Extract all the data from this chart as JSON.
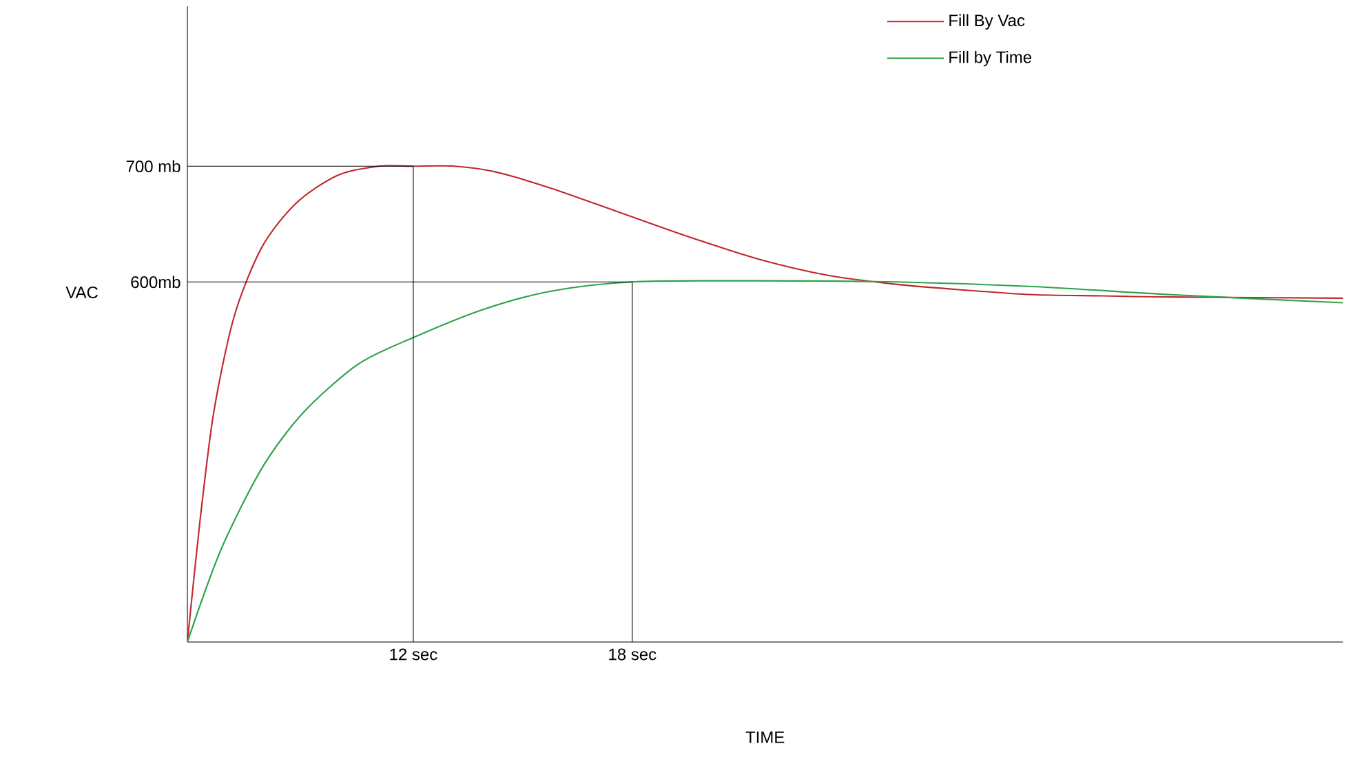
{
  "chart_data": {
    "type": "line",
    "xlabel": "TIME",
    "ylabel": "VAC",
    "xlim": [
      5.81,
      37.47
    ],
    "ylim": [
      289,
      838
    ],
    "xticks": [
      {
        "value": 12,
        "label": "12 sec"
      },
      {
        "value": 18,
        "label": "18 sec"
      }
    ],
    "yticks": [
      {
        "value": 600,
        "label": "600mb"
      },
      {
        "value": 700,
        "label": "700 mb"
      }
    ],
    "legend": "top right",
    "marker": "none",
    "line_style": "solid",
    "ref_lines": [
      {
        "axis": "y",
        "value": 700,
        "color": "#000000"
      },
      {
        "axis": "x",
        "value": 12,
        "color": "#000000"
      },
      {
        "axis": "y",
        "value": 600,
        "color": "#000000"
      },
      {
        "axis": "x",
        "value": 18,
        "color": "#000000"
      }
    ],
    "series": [
      {
        "name": "Fill By Vac",
        "color": "#c0282d",
        "x": [
          5.81,
          6.15,
          6.53,
          7.09,
          7.85,
          8.79,
          9.92,
          11.06,
          12,
          13.13,
          14.26,
          15.77,
          17.66,
          19.55,
          21.43,
          23.32,
          25.21,
          27.09,
          28.98,
          30.87,
          32.75,
          37.47
        ],
        "values": [
          289,
          392,
          487,
          570,
          630,
          668,
          692,
          700,
          700,
          700,
          695,
          681,
          660,
          639,
          620,
          606,
          598,
          593,
          589,
          588,
          587,
          586
        ]
      },
      {
        "name": "Fill by Time",
        "color": "#2ca24a",
        "x": [
          5.81,
          6.72,
          7.85,
          8.98,
          10.49,
          12,
          13.89,
          15.77,
          18,
          21.43,
          25.21,
          28.98,
          32.75,
          37.47
        ],
        "values": [
          289,
          368,
          439,
          487,
          529,
          552,
          576,
          592,
          600,
          601,
          600,
          596,
          589,
          582
        ]
      }
    ]
  }
}
